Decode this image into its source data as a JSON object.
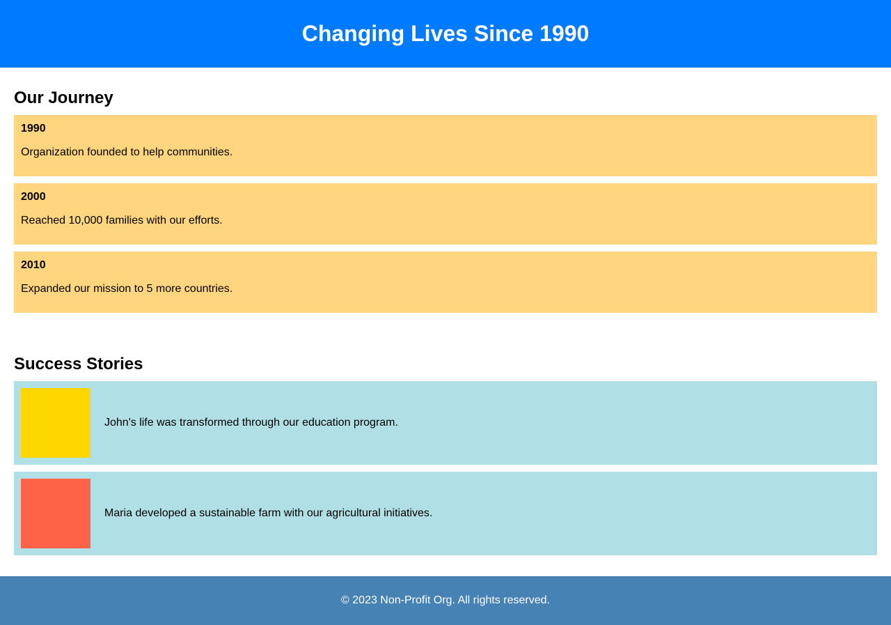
{
  "header": {
    "title": "Changing Lives Since 1990",
    "background_color": "#007bff"
  },
  "journey": {
    "title": "Our Journey",
    "item_color": "#ffd580",
    "items": [
      {
        "year": "1990",
        "description": "Organization founded to help communities."
      },
      {
        "year": "2000",
        "description": "Reached 10,000 families with our efforts."
      },
      {
        "year": "2010",
        "description": "Expanded our mission to 5 more countries."
      }
    ]
  },
  "stories": {
    "title": "Success Stories",
    "item_color": "#b0dfe5",
    "items": [
      {
        "image_color": "#ffd700",
        "text": "John's life was transformed through our education program."
      },
      {
        "image_color": "#ff6347",
        "text": "Maria developed a sustainable farm with our agricultural initiatives."
      }
    ]
  },
  "footer": {
    "text": "© 2023 Non-Profit Org. All rights reserved.",
    "background_color": "#4682b4"
  }
}
